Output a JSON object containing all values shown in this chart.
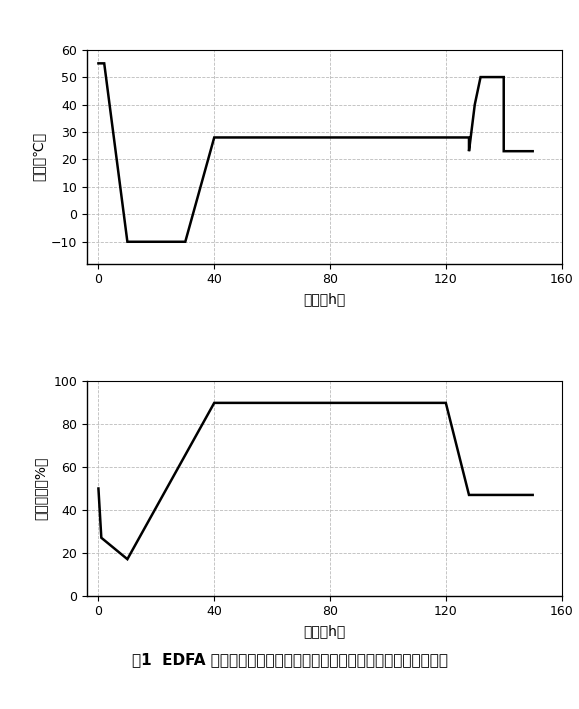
{
  "temp_x": [
    0,
    2,
    2,
    10,
    10,
    30,
    30,
    40,
    40,
    128,
    128,
    130,
    130,
    132,
    132,
    140,
    140,
    143,
    143,
    150
  ],
  "temp_y": [
    55,
    55,
    55,
    -10,
    -10,
    -10,
    -10,
    28,
    28,
    28,
    23,
    40,
    40,
    50,
    50,
    50,
    23,
    23,
    23,
    23
  ],
  "hum_x": [
    0,
    1,
    1,
    10,
    10,
    40,
    40,
    120,
    120,
    128,
    128,
    150
  ],
  "hum_y": [
    50,
    27,
    27,
    17,
    17,
    90,
    90,
    90,
    90,
    47,
    47,
    47
  ],
  "temp_xlim": [
    -4,
    160
  ],
  "temp_ylim": [
    -18,
    60
  ],
  "temp_yticks": [
    -10,
    0,
    10,
    20,
    30,
    40,
    50,
    60
  ],
  "temp_xticks": [
    0,
    40,
    80,
    120,
    160
  ],
  "hum_xlim": [
    -4,
    160
  ],
  "hum_ylim": [
    0,
    100
  ],
  "hum_yticks": [
    0,
    20,
    40,
    60,
    80,
    100
  ],
  "hum_xticks": [
    0,
    40,
    80,
    120,
    160
  ],
  "temp_ylabel": "温度（℃）",
  "hum_ylabel": "相对湿度（%）",
  "xlabel": "时间（h）",
  "caption_fig": "图1",
  "caption_text": "  EDFA 单元在工作温度和湿度试验中温度和相对湿度随时间的变化",
  "line_color": "#000000",
  "grid_color": "#bbbbbb",
  "bg_color": "#ffffff"
}
